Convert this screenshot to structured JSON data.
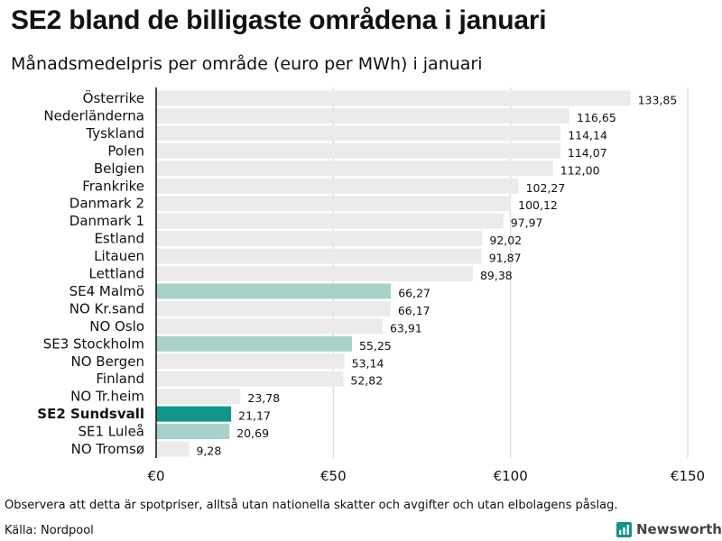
{
  "chart_data": {
    "type": "bar",
    "title": "SE2 bland de billigaste områdena i januari",
    "subtitle": "Månadsmedelpris per område (euro per MWh) i januari",
    "categories": [
      "Österrike",
      "Nederländerna",
      "Tyskland",
      "Polen",
      "Belgien",
      "Frankrike",
      "Danmark  2",
      "Danmark  1",
      "Estland",
      "Litauen",
      "Lettland",
      "SE4  Malmö",
      "NO Kr.sand",
      "NO Oslo",
      "SE3  Stockholm",
      "NO Bergen",
      "Finland",
      "NO Tr.heim",
      "SE2 Sundsvall",
      "SE1  Luleå",
      "NO Tromsø"
    ],
    "values": [
      133.85,
      116.65,
      114.14,
      114.07,
      112.0,
      102.27,
      100.12,
      97.97,
      92.02,
      91.87,
      89.38,
      66.27,
      66.17,
      63.91,
      55.25,
      53.14,
      52.82,
      23.78,
      21.17,
      20.69,
      9.28
    ],
    "value_labels": [
      "133,85",
      "116,65",
      "114,14",
      "114,07",
      "112,00",
      "102,27",
      "100,12",
      "97,97",
      "92,02",
      "91,87",
      "89,38",
      "66,27",
      "66,17",
      "63,91",
      "55,25",
      "53,14",
      "52,82",
      "23,78",
      "21,17",
      "20,69",
      "9,28"
    ],
    "highlight": [
      "none",
      "none",
      "none",
      "none",
      "none",
      "none",
      "none",
      "none",
      "none",
      "none",
      "none",
      "light",
      "none",
      "none",
      "light",
      "none",
      "none",
      "none",
      "strong",
      "light",
      "none"
    ],
    "xlim": [
      0,
      150
    ],
    "xticks": [
      0,
      50,
      100,
      150
    ],
    "xtick_labels": [
      "€0",
      "€50",
      "€100",
      "€150"
    ],
    "xlabel": "",
    "ylabel": "",
    "grid": true
  },
  "colors": {
    "default_bar": "#ebebeb",
    "highlight_light": "#a8d1c9",
    "highlight_strong": "#12968a",
    "grid": "#d6d6d6",
    "axis": "#111111"
  },
  "footer": {
    "note": "Observera att detta är spotpriser, alltså utan nationella skatter och avgifter och utan elbolagens påslag.",
    "source": "Källa: Nordpool"
  },
  "brand": {
    "name": "Newsworthy",
    "icon": "newsworthy-logo-icon"
  }
}
